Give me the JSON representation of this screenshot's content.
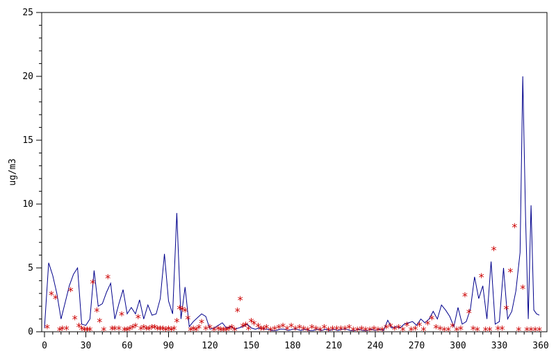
{
  "chart_data": {
    "type": "line",
    "title": "",
    "xlabel": "",
    "ylabel": "ug/m3",
    "xlim": [
      0,
      362
    ],
    "ylim": [
      0,
      25
    ],
    "xticks": [
      0,
      30,
      60,
      90,
      120,
      150,
      180,
      210,
      240,
      270,
      300,
      330,
      360
    ],
    "yticks": [
      0,
      5,
      10,
      15,
      20,
      25
    ],
    "grid": false,
    "legend": "none",
    "series": [
      {
        "style": "line",
        "color": "#00008b",
        "x": [
          0,
          3,
          6,
          9,
          12,
          15,
          18,
          21,
          24,
          27,
          30,
          33,
          36,
          39,
          42,
          45,
          48,
          51,
          54,
          57,
          60,
          63,
          66,
          69,
          72,
          75,
          78,
          81,
          84,
          87,
          90,
          93,
          96,
          99,
          102,
          105,
          108,
          111,
          114,
          117,
          120,
          123,
          126,
          129,
          132,
          135,
          138,
          141,
          144,
          147,
          150,
          153,
          156,
          159,
          162,
          165,
          168,
          171,
          174,
          177,
          180,
          183,
          186,
          189,
          192,
          195,
          198,
          201,
          204,
          207,
          210,
          213,
          216,
          219,
          222,
          225,
          228,
          231,
          234,
          237,
          240,
          243,
          246,
          249,
          252,
          255,
          258,
          261,
          264,
          267,
          270,
          273,
          276,
          279,
          282,
          285,
          288,
          291,
          294,
          297,
          300,
          303,
          306,
          309,
          312,
          315,
          318,
          321,
          324,
          327,
          330,
          333,
          336,
          339,
          342,
          345,
          347,
          349,
          351,
          353,
          355,
          357,
          359
        ],
        "y": [
          0.3,
          5.4,
          4.4,
          3.0,
          1.0,
          2.3,
          3.6,
          4.5,
          5.0,
          0.6,
          0.5,
          1.0,
          4.8,
          2.0,
          2.2,
          3.1,
          3.8,
          1.0,
          2.2,
          3.3,
          1.4,
          1.9,
          1.4,
          2.5,
          1.0,
          2.1,
          1.3,
          1.4,
          2.6,
          6.1,
          2.4,
          1.4,
          9.3,
          1.0,
          3.5,
          0.4,
          0.8,
          1.1,
          1.4,
          1.2,
          0.2,
          0.3,
          0.5,
          0.7,
          0.3,
          0.4,
          0.2,
          0.3,
          0.4,
          0.6,
          0.3,
          0.2,
          0.3,
          0.2,
          0.2,
          0.1,
          0.1,
          0.2,
          0.2,
          0.1,
          0.2,
          0.2,
          0.1,
          0.2,
          0.1,
          0.1,
          0.2,
          0.1,
          0.2,
          0.1,
          0.2,
          0.1,
          0.2,
          0.2,
          0.1,
          0.1,
          0.2,
          0.1,
          0.1,
          0.2,
          0.1,
          0.2,
          0.1,
          0.9,
          0.3,
          0.4,
          0.3,
          0.6,
          0.7,
          0.8,
          0.5,
          1.0,
          0.7,
          1.0,
          1.6,
          1.0,
          2.1,
          1.7,
          1.2,
          0.4,
          1.9,
          0.6,
          0.8,
          1.8,
          4.3,
          2.6,
          3.6,
          1.0,
          5.5,
          0.6,
          0.8,
          5.0,
          1.0,
          1.6,
          3.2,
          6.2,
          20.0,
          9.0,
          1.0,
          9.9,
          1.7,
          1.4,
          1.3
        ]
      },
      {
        "style": "marker",
        "marker": "*",
        "color": "#cc0000",
        "x": [
          2,
          5,
          8,
          11,
          13,
          16,
          19,
          22,
          25,
          27,
          29,
          31,
          33,
          35,
          38,
          40,
          43,
          46,
          49,
          51,
          54,
          56,
          58,
          60,
          62,
          64,
          66,
          68,
          70,
          72,
          74,
          76,
          78,
          80,
          82,
          84,
          86,
          88,
          90,
          92,
          94,
          96,
          98,
          100,
          102,
          104,
          106,
          108,
          110,
          112,
          114,
          117,
          120,
          123,
          126,
          128,
          130,
          132,
          134,
          136,
          138,
          140,
          142,
          144,
          146,
          148,
          150,
          152,
          155,
          157,
          159,
          161,
          164,
          167,
          170,
          173,
          176,
          179,
          182,
          185,
          188,
          191,
          194,
          197,
          200,
          203,
          206,
          209,
          212,
          215,
          218,
          221,
          224,
          227,
          230,
          233,
          236,
          239,
          242,
          245,
          248,
          251,
          254,
          257,
          260,
          263,
          266,
          269,
          272,
          275,
          278,
          281,
          284,
          287,
          290,
          293,
          296,
          299,
          302,
          305,
          308,
          311,
          314,
          317,
          320,
          323,
          326,
          329,
          332,
          335,
          338,
          341,
          344,
          347,
          350,
          353,
          356,
          359
        ],
        "y": [
          0.3,
          2.9,
          2.6,
          0.1,
          0.2,
          0.2,
          3.2,
          1.0,
          0.4,
          0.2,
          0.1,
          0.1,
          0.1,
          3.8,
          1.6,
          0.8,
          0.1,
          4.2,
          0.2,
          0.2,
          0.2,
          1.3,
          0.1,
          0.1,
          0.2,
          0.3,
          0.4,
          1.1,
          0.2,
          0.3,
          0.2,
          0.2,
          0.3,
          0.3,
          0.2,
          0.2,
          0.2,
          0.1,
          0.2,
          0.1,
          0.2,
          0.8,
          1.8,
          1.7,
          1.6,
          1.0,
          0.1,
          0.2,
          0.1,
          0.3,
          0.7,
          0.2,
          0.3,
          0.1,
          0.2,
          0.1,
          0.1,
          0.1,
          0.2,
          0.3,
          0.1,
          1.6,
          2.5,
          0.4,
          0.5,
          0.2,
          0.8,
          0.6,
          0.4,
          0.2,
          0.2,
          0.3,
          0.1,
          0.2,
          0.3,
          0.4,
          0.2,
          0.4,
          0.2,
          0.3,
          0.2,
          0.1,
          0.3,
          0.2,
          0.1,
          0.3,
          0.1,
          0.2,
          0.2,
          0.2,
          0.2,
          0.3,
          0.1,
          0.1,
          0.2,
          0.1,
          0.1,
          0.2,
          0.1,
          0.1,
          0.3,
          0.4,
          0.2,
          0.3,
          0.1,
          0.5,
          0.1,
          0.2,
          0.5,
          0.1,
          0.6,
          1.0,
          0.3,
          0.2,
          0.1,
          0.1,
          0.4,
          0.1,
          0.2,
          2.8,
          1.5,
          0.2,
          0.1,
          4.3,
          0.1,
          0.1,
          6.4,
          0.2,
          0.2,
          1.8,
          4.7,
          8.2,
          0.1,
          3.4,
          0.1,
          0.1,
          0.1,
          0.1
        ]
      }
    ]
  }
}
